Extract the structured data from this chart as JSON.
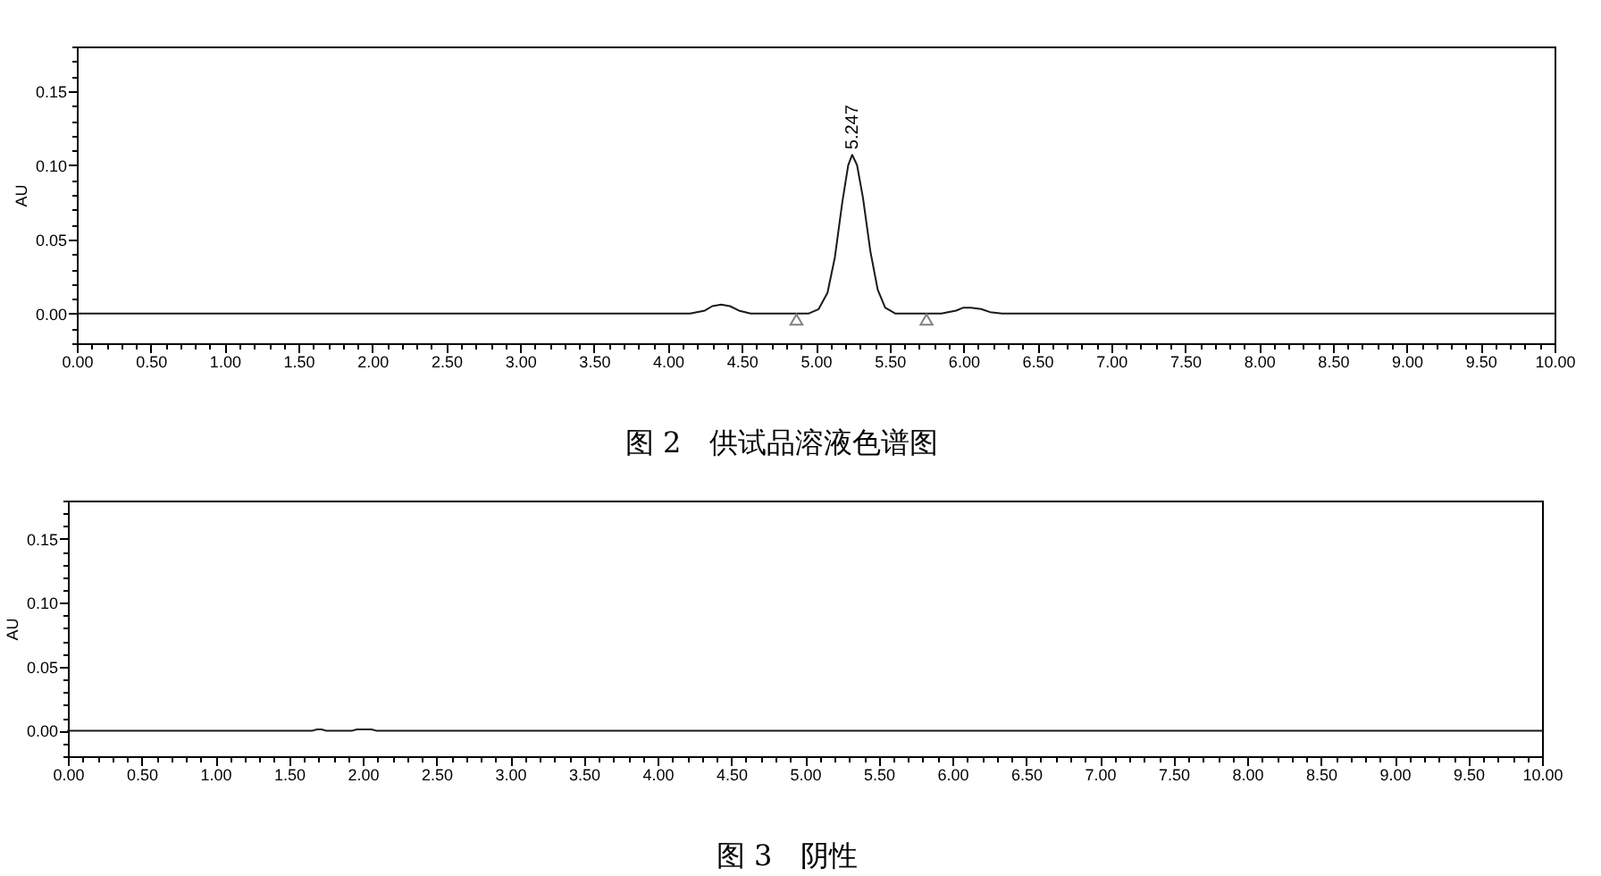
{
  "chart_data": [
    {
      "type": "line",
      "title": "图 2　供试品溶液色谱图",
      "ylabel": "AU",
      "annotations": [
        {
          "text": "5.247",
          "x": 5.247,
          "y": 0.107
        }
      ],
      "xlim": [
        0,
        10
      ],
      "ylim": [
        -0.02,
        0.18
      ],
      "xticks": [
        {
          "value": 0,
          "label": "0.00"
        },
        {
          "value": 0.1,
          "label": null
        },
        {
          "value": 0.2,
          "label": null
        },
        {
          "value": 0.3,
          "label": null
        },
        {
          "value": 0.4,
          "label": null
        },
        {
          "value": 0.5,
          "label": "0.50"
        },
        {
          "value": 0.6,
          "label": null
        },
        {
          "value": 0.7,
          "label": null
        },
        {
          "value": 0.8,
          "label": null
        },
        {
          "value": 0.9,
          "label": null
        },
        {
          "value": 1,
          "label": "1.00"
        },
        {
          "value": 1.1,
          "label": null
        },
        {
          "value": 1.2,
          "label": null
        },
        {
          "value": 1.3,
          "label": null
        },
        {
          "value": 1.4,
          "label": null
        },
        {
          "value": 1.5,
          "label": "1.50"
        },
        {
          "value": 1.6,
          "label": null
        },
        {
          "value": 1.7,
          "label": null
        },
        {
          "value": 1.8,
          "label": null
        },
        {
          "value": 1.9,
          "label": null
        },
        {
          "value": 2,
          "label": "2.00"
        },
        {
          "value": 2.1,
          "label": null
        },
        {
          "value": 2.2,
          "label": null
        },
        {
          "value": 2.3,
          "label": null
        },
        {
          "value": 2.4,
          "label": null
        },
        {
          "value": 2.5,
          "label": "2.50"
        },
        {
          "value": 2.6,
          "label": null
        },
        {
          "value": 2.7,
          "label": null
        },
        {
          "value": 2.8,
          "label": null
        },
        {
          "value": 2.9,
          "label": null
        },
        {
          "value": 3,
          "label": "3.00"
        },
        {
          "value": 3.1,
          "label": null
        },
        {
          "value": 3.2,
          "label": null
        },
        {
          "value": 3.3,
          "label": null
        },
        {
          "value": 3.4,
          "label": null
        },
        {
          "value": 3.5,
          "label": "3.50"
        },
        {
          "value": 3.6,
          "label": null
        },
        {
          "value": 3.7,
          "label": null
        },
        {
          "value": 3.8,
          "label": null
        },
        {
          "value": 3.9,
          "label": null
        },
        {
          "value": 4,
          "label": "4.00"
        },
        {
          "value": 4.1,
          "label": null
        },
        {
          "value": 4.2,
          "label": null
        },
        {
          "value": 4.3,
          "label": null
        },
        {
          "value": 4.4,
          "label": null
        },
        {
          "value": 4.5,
          "label": "4.50"
        },
        {
          "value": 4.6,
          "label": null
        },
        {
          "value": 4.7,
          "label": null
        },
        {
          "value": 4.8,
          "label": null
        },
        {
          "value": 4.9,
          "label": null
        },
        {
          "value": 5,
          "label": "5.00"
        },
        {
          "value": 5.1,
          "label": null
        },
        {
          "value": 5.2,
          "label": null
        },
        {
          "value": 5.3,
          "label": null
        },
        {
          "value": 5.4,
          "label": null
        },
        {
          "value": 5.5,
          "label": "5.50"
        },
        {
          "value": 5.6,
          "label": null
        },
        {
          "value": 5.7,
          "label": null
        },
        {
          "value": 5.8,
          "label": null
        },
        {
          "value": 5.9,
          "label": null
        },
        {
          "value": 6,
          "label": "6.00"
        },
        {
          "value": 6.1,
          "label": null
        },
        {
          "value": 6.2,
          "label": null
        },
        {
          "value": 6.3,
          "label": null
        },
        {
          "value": 6.4,
          "label": null
        },
        {
          "value": 6.5,
          "label": "6.50"
        },
        {
          "value": 6.6,
          "label": null
        },
        {
          "value": 6.7,
          "label": null
        },
        {
          "value": 6.8,
          "label": null
        },
        {
          "value": 6.9,
          "label": null
        },
        {
          "value": 7,
          "label": "7.00"
        },
        {
          "value": 7.1,
          "label": null
        },
        {
          "value": 7.2,
          "label": null
        },
        {
          "value": 7.3,
          "label": null
        },
        {
          "value": 7.4,
          "label": null
        },
        {
          "value": 7.5,
          "label": "7.50"
        },
        {
          "value": 7.6,
          "label": null
        },
        {
          "value": 7.7,
          "label": null
        },
        {
          "value": 7.8,
          "label": null
        },
        {
          "value": 7.9,
          "label": null
        },
        {
          "value": 8,
          "label": "8.00"
        },
        {
          "value": 8.1,
          "label": null
        },
        {
          "value": 8.2,
          "label": null
        },
        {
          "value": 8.3,
          "label": null
        },
        {
          "value": 8.4,
          "label": null
        },
        {
          "value": 8.5,
          "label": "8.50"
        },
        {
          "value": 8.6,
          "label": null
        },
        {
          "value": 8.7,
          "label": null
        },
        {
          "value": 8.8,
          "label": null
        },
        {
          "value": 8.9,
          "label": null
        },
        {
          "value": 9,
          "label": "9.00"
        },
        {
          "value": 9.1,
          "label": null
        },
        {
          "value": 9.2,
          "label": null
        },
        {
          "value": 9.3,
          "label": null
        },
        {
          "value": 9.4,
          "label": null
        },
        {
          "value": 9.5,
          "label": "9.50"
        },
        {
          "value": 9.6,
          "label": null
        },
        {
          "value": 9.7,
          "label": null
        },
        {
          "value": 9.8,
          "label": null
        },
        {
          "value": 9.9,
          "label": null
        },
        {
          "value": 10,
          "label": "10.00"
        }
      ],
      "yticks": [
        {
          "value": -0.02,
          "label": null
        },
        {
          "value": -0.01,
          "label": null
        },
        {
          "value": 0,
          "label": "0.00"
        },
        {
          "value": 0.01,
          "label": null
        },
        {
          "value": 0.02,
          "label": null
        },
        {
          "value": 0.03,
          "label": null
        },
        {
          "value": 0.04,
          "label": null
        },
        {
          "value": 0.05,
          "label": "0.05"
        },
        {
          "value": 0.06,
          "label": null
        },
        {
          "value": 0.07,
          "label": null
        },
        {
          "value": 0.08,
          "label": null
        },
        {
          "value": 0.09,
          "label": null
        },
        {
          "value": 0.1,
          "label": "0.10"
        },
        {
          "value": 0.11,
          "label": null
        },
        {
          "value": 0.12,
          "label": null
        },
        {
          "value": 0.13,
          "label": null
        },
        {
          "value": 0.14,
          "label": null
        },
        {
          "value": 0.15,
          "label": "0.15"
        },
        {
          "value": 0.16,
          "label": null
        },
        {
          "value": 0.17,
          "label": null
        },
        {
          "value": 0.18,
          "label": null
        }
      ],
      "series": [
        {
          "color": "#1a1a1a",
          "x": [
            0,
            4.15,
            4.25,
            4.3,
            4.36,
            4.42,
            4.48,
            4.56,
            4.95,
            5.02,
            5.08,
            5.13,
            5.18,
            5.22,
            5.247,
            5.28,
            5.32,
            5.37,
            5.42,
            5.47,
            5.54,
            5.85,
            5.95,
            6,
            6.05,
            6.12,
            6.18,
            6.26,
            10
          ],
          "values": [
            0,
            0,
            0.002,
            0.005,
            0.006,
            0.005,
            0.002,
            0,
            0,
            0.003,
            0.014,
            0.038,
            0.075,
            0.1,
            0.107,
            0.1,
            0.078,
            0.042,
            0.016,
            0.004,
            0,
            0,
            0.002,
            0.004,
            0.004,
            0.003,
            0.001,
            0,
            0
          ]
        },
        {
          "type": "scatter",
          "marker": "triangle",
          "color": "#808080",
          "x": [
            4.87,
            5.75
          ],
          "values": [
            -0.004,
            -0.004
          ]
        }
      ]
    },
    {
      "type": "line",
      "title": "图 3　阴性",
      "ylabel": "AU",
      "xlim": [
        0,
        10
      ],
      "ylim": [
        -0.02,
        0.18
      ],
      "xticks": [
        {
          "value": 0,
          "label": "0.00"
        },
        {
          "value": 0.1,
          "label": null
        },
        {
          "value": 0.2,
          "label": null
        },
        {
          "value": 0.3,
          "label": null
        },
        {
          "value": 0.4,
          "label": null
        },
        {
          "value": 0.5,
          "label": "0.50"
        },
        {
          "value": 0.6,
          "label": null
        },
        {
          "value": 0.7,
          "label": null
        },
        {
          "value": 0.8,
          "label": null
        },
        {
          "value": 0.9,
          "label": null
        },
        {
          "value": 1,
          "label": "1.00"
        },
        {
          "value": 1.1,
          "label": null
        },
        {
          "value": 1.2,
          "label": null
        },
        {
          "value": 1.3,
          "label": null
        },
        {
          "value": 1.4,
          "label": null
        },
        {
          "value": 1.5,
          "label": "1.50"
        },
        {
          "value": 1.6,
          "label": null
        },
        {
          "value": 1.7,
          "label": null
        },
        {
          "value": 1.8,
          "label": null
        },
        {
          "value": 1.9,
          "label": null
        },
        {
          "value": 2,
          "label": "2.00"
        },
        {
          "value": 2.1,
          "label": null
        },
        {
          "value": 2.2,
          "label": null
        },
        {
          "value": 2.3,
          "label": null
        },
        {
          "value": 2.4,
          "label": null
        },
        {
          "value": 2.5,
          "label": "2.50"
        },
        {
          "value": 2.6,
          "label": null
        },
        {
          "value": 2.7,
          "label": null
        },
        {
          "value": 2.8,
          "label": null
        },
        {
          "value": 2.9,
          "label": null
        },
        {
          "value": 3,
          "label": "3.00"
        },
        {
          "value": 3.1,
          "label": null
        },
        {
          "value": 3.2,
          "label": null
        },
        {
          "value": 3.3,
          "label": null
        },
        {
          "value": 3.4,
          "label": null
        },
        {
          "value": 3.5,
          "label": "3.50"
        },
        {
          "value": 3.6,
          "label": null
        },
        {
          "value": 3.7,
          "label": null
        },
        {
          "value": 3.8,
          "label": null
        },
        {
          "value": 3.9,
          "label": null
        },
        {
          "value": 4,
          "label": "4.00"
        },
        {
          "value": 4.1,
          "label": null
        },
        {
          "value": 4.2,
          "label": null
        },
        {
          "value": 4.3,
          "label": null
        },
        {
          "value": 4.4,
          "label": null
        },
        {
          "value": 4.5,
          "label": "4.50"
        },
        {
          "value": 4.6,
          "label": null
        },
        {
          "value": 4.7,
          "label": null
        },
        {
          "value": 4.8,
          "label": null
        },
        {
          "value": 4.9,
          "label": null
        },
        {
          "value": 5,
          "label": "5.00"
        },
        {
          "value": 5.1,
          "label": null
        },
        {
          "value": 5.2,
          "label": null
        },
        {
          "value": 5.3,
          "label": null
        },
        {
          "value": 5.4,
          "label": null
        },
        {
          "value": 5.5,
          "label": "5.50"
        },
        {
          "value": 5.6,
          "label": null
        },
        {
          "value": 5.7,
          "label": null
        },
        {
          "value": 5.8,
          "label": null
        },
        {
          "value": 5.9,
          "label": null
        },
        {
          "value": 6,
          "label": "6.00"
        },
        {
          "value": 6.1,
          "label": null
        },
        {
          "value": 6.2,
          "label": null
        },
        {
          "value": 6.3,
          "label": null
        },
        {
          "value": 6.4,
          "label": null
        },
        {
          "value": 6.5,
          "label": "6.50"
        },
        {
          "value": 6.6,
          "label": null
        },
        {
          "value": 6.7,
          "label": null
        },
        {
          "value": 6.8,
          "label": null
        },
        {
          "value": 6.9,
          "label": null
        },
        {
          "value": 7,
          "label": "7.00"
        },
        {
          "value": 7.1,
          "label": null
        },
        {
          "value": 7.2,
          "label": null
        },
        {
          "value": 7.3,
          "label": null
        },
        {
          "value": 7.4,
          "label": null
        },
        {
          "value": 7.5,
          "label": "7.50"
        },
        {
          "value": 7.6,
          "label": null
        },
        {
          "value": 7.7,
          "label": null
        },
        {
          "value": 7.8,
          "label": null
        },
        {
          "value": 7.9,
          "label": null
        },
        {
          "value": 8,
          "label": "8.00"
        },
        {
          "value": 8.1,
          "label": null
        },
        {
          "value": 8.2,
          "label": null
        },
        {
          "value": 8.3,
          "label": null
        },
        {
          "value": 8.4,
          "label": null
        },
        {
          "value": 8.5,
          "label": "8.50"
        },
        {
          "value": 8.6,
          "label": null
        },
        {
          "value": 8.7,
          "label": null
        },
        {
          "value": 8.8,
          "label": null
        },
        {
          "value": 8.9,
          "label": null
        },
        {
          "value": 9,
          "label": "9.00"
        },
        {
          "value": 9.1,
          "label": null
        },
        {
          "value": 9.2,
          "label": null
        },
        {
          "value": 9.3,
          "label": null
        },
        {
          "value": 9.4,
          "label": null
        },
        {
          "value": 9.5,
          "label": "9.50"
        },
        {
          "value": 9.6,
          "label": null
        },
        {
          "value": 9.7,
          "label": null
        },
        {
          "value": 9.8,
          "label": null
        },
        {
          "value": 9.9,
          "label": null
        },
        {
          "value": 10,
          "label": "10.00"
        }
      ],
      "yticks": [
        {
          "value": -0.02,
          "label": null
        },
        {
          "value": -0.01,
          "label": null
        },
        {
          "value": 0,
          "label": "0.00"
        },
        {
          "value": 0.01,
          "label": null
        },
        {
          "value": 0.02,
          "label": null
        },
        {
          "value": 0.03,
          "label": null
        },
        {
          "value": 0.04,
          "label": null
        },
        {
          "value": 0.05,
          "label": "0.05"
        },
        {
          "value": 0.06,
          "label": null
        },
        {
          "value": 0.07,
          "label": null
        },
        {
          "value": 0.08,
          "label": null
        },
        {
          "value": 0.09,
          "label": null
        },
        {
          "value": 0.1,
          "label": "0.10"
        },
        {
          "value": 0.11,
          "label": null
        },
        {
          "value": 0.12,
          "label": null
        },
        {
          "value": 0.13,
          "label": null
        },
        {
          "value": 0.14,
          "label": null
        },
        {
          "value": 0.15,
          "label": "0.15"
        },
        {
          "value": 0.16,
          "label": null
        },
        {
          "value": 0.17,
          "label": null
        },
        {
          "value": 0.18,
          "label": null
        }
      ],
      "series": [
        {
          "color": "#1a1a1a",
          "x": [
            0,
            1.66,
            1.69,
            1.72,
            1.75,
            1.93,
            1.96,
            2.06,
            2.09,
            10
          ],
          "values": [
            0,
            0,
            0.001,
            0.001,
            0,
            0,
            0.001,
            0.001,
            0,
            0
          ]
        }
      ]
    }
  ]
}
